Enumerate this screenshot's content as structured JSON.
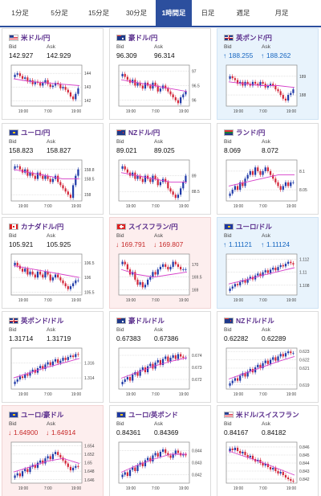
{
  "tabs": [
    {
      "label": "1分足"
    },
    {
      "label": "5分足"
    },
    {
      "label": "15分足"
    },
    {
      "label": "30分足"
    },
    {
      "label": "1時間足",
      "active": true
    },
    {
      "label": "日足"
    },
    {
      "label": "週足"
    },
    {
      "label": "月足"
    }
  ],
  "labels": {
    "bid": "Bid",
    "ask": "Ask"
  },
  "cards": [
    {
      "pair": "米ドル/円",
      "flag": "us",
      "tone": "none",
      "bid": "142.927",
      "ask": "142.929",
      "trend": "none",
      "chart_data": {
        "type": "candlestick",
        "xticks": [
          "19:00",
          "7:00",
          "19:00"
        ],
        "yticks": [
          "144",
          "143",
          "142"
        ],
        "ylim": [
          141.6,
          144.6
        ],
        "close": [
          143.9,
          144.0,
          143.8,
          143.6,
          143.7,
          143.4,
          143.5,
          143.2,
          143.4,
          143.3,
          143.1,
          143.3,
          143.5,
          143.2,
          143.0,
          143.1,
          143.3,
          143.2,
          142.9,
          143.0,
          142.8,
          142.6,
          142.3,
          142.1,
          142.5,
          142.9
        ],
        "ma": [
          143.6,
          143.4,
          143.3,
          143.2,
          143.1
        ]
      }
    },
    {
      "pair": "豪ドル/円",
      "flag": "au",
      "tone": "none",
      "bid": "96.309",
      "ask": "96.314",
      "trend": "none",
      "chart_data": {
        "type": "candlestick",
        "xticks": [
          "19:00",
          "7:00",
          "19:00"
        ],
        "yticks": [
          "97",
          "96.5",
          "96"
        ],
        "ylim": [
          95.8,
          97.2
        ],
        "close": [
          96.9,
          96.8,
          96.7,
          96.6,
          96.7,
          96.5,
          96.6,
          96.5,
          96.4,
          96.6,
          96.5,
          96.4,
          96.6,
          96.5,
          96.3,
          96.4,
          96.5,
          96.4,
          96.3,
          96.2,
          96.1,
          96.0,
          95.9,
          96.1,
          96.2,
          96.3
        ],
        "ma": [
          96.7,
          96.6,
          96.5,
          96.4,
          96.3
        ]
      }
    },
    {
      "pair": "英ポンド/円",
      "flag": "gb",
      "tone": "up",
      "bid": "188.255",
      "ask": "188.262",
      "trend": "up",
      "chart_data": {
        "type": "candlestick",
        "xticks": [
          "19:00",
          "7:00",
          "19:00"
        ],
        "yticks": [
          "189",
          "188"
        ],
        "ylim": [
          187.4,
          189.6
        ],
        "close": [
          189.0,
          188.9,
          188.8,
          188.6,
          188.7,
          188.5,
          188.7,
          188.6,
          188.5,
          188.7,
          188.6,
          188.5,
          188.7,
          188.6,
          188.4,
          188.5,
          188.6,
          188.5,
          188.3,
          188.2,
          188.0,
          187.8,
          187.7,
          188.0,
          188.1,
          188.3
        ],
        "ma": [
          188.7,
          188.6,
          188.5,
          188.5,
          188.4
        ]
      }
    },
    {
      "pair": "ユーロ/円",
      "flag": "eu",
      "tone": "none",
      "bid": "158.823",
      "ask": "158.827",
      "trend": "none",
      "chart_data": {
        "type": "candlestick",
        "xticks": [
          "19:00",
          "7:00",
          "19:00"
        ],
        "yticks": [
          "158.8",
          "158.5",
          "158"
        ],
        "ylim": [
          157.8,
          159.1
        ],
        "close": [
          158.9,
          158.9,
          158.8,
          158.7,
          158.8,
          158.6,
          158.7,
          158.6,
          158.5,
          158.7,
          158.6,
          158.5,
          158.6,
          158.5,
          158.4,
          158.5,
          158.6,
          158.4,
          158.3,
          158.2,
          158.1,
          158.0,
          157.9,
          158.3,
          158.6,
          158.8
        ],
        "ma": [
          158.8,
          158.7,
          158.6,
          158.5,
          158.5
        ]
      }
    },
    {
      "pair": "NZドル/円",
      "flag": "nz",
      "tone": "none",
      "bid": "89.021",
      "ask": "89.025",
      "trend": "none",
      "chart_data": {
        "type": "candlestick",
        "xticks": [
          "19:00",
          "7:00",
          "19:00"
        ],
        "yticks": [
          "89",
          "88.5"
        ],
        "ylim": [
          88.2,
          89.5
        ],
        "close": [
          89.3,
          89.2,
          89.1,
          89.0,
          89.1,
          88.9,
          89.0,
          88.9,
          88.8,
          89.0,
          88.9,
          88.8,
          89.0,
          88.9,
          88.7,
          88.8,
          88.9,
          88.8,
          88.6,
          88.5,
          88.4,
          88.3,
          88.4,
          88.6,
          88.8,
          89.0
        ],
        "ma": [
          89.1,
          89.0,
          88.9,
          88.8,
          88.8
        ]
      }
    },
    {
      "pair": "ランド/円",
      "flag": "za",
      "tone": "none",
      "bid": "8.069",
      "ask": "8.072",
      "trend": "none",
      "chart_data": {
        "type": "candlestick",
        "xticks": [
          "19:00",
          "7:00",
          "19:00"
        ],
        "yticks": [
          "8.1",
          "8.05"
        ],
        "ylim": [
          8.02,
          8.13
        ],
        "close": [
          8.04,
          8.05,
          8.06,
          8.05,
          8.07,
          8.06,
          8.08,
          8.09,
          8.1,
          8.09,
          8.11,
          8.1,
          8.09,
          8.1,
          8.11,
          8.1,
          8.09,
          8.08,
          8.07,
          8.06,
          8.05,
          8.06,
          8.07,
          8.06,
          8.07,
          8.07
        ],
        "ma": [
          8.06,
          8.07,
          8.08,
          8.09,
          8.09
        ]
      }
    },
    {
      "pair": "カナダドル/円",
      "flag": "ca",
      "tone": "none",
      "bid": "105.921",
      "ask": "105.925",
      "trend": "none",
      "chart_data": {
        "type": "candlestick",
        "xticks": [
          "19:00",
          "7:00",
          "19:00"
        ],
        "yticks": [
          "106.5",
          "106",
          "105.5"
        ],
        "ylim": [
          105.4,
          106.8
        ],
        "close": [
          106.5,
          106.4,
          106.3,
          106.2,
          106.3,
          106.1,
          106.2,
          106.1,
          106.0,
          106.2,
          106.1,
          106.0,
          106.2,
          106.1,
          105.9,
          106.0,
          106.1,
          106.0,
          105.9,
          105.8,
          105.7,
          105.6,
          105.7,
          105.8,
          105.9,
          105.9
        ],
        "ma": [
          106.4,
          106.3,
          106.2,
          106.1,
          106.0
        ]
      }
    },
    {
      "pair": "スイスフラン/円",
      "flag": "ch",
      "tone": "down",
      "bid": "169.791",
      "ask": "169.807",
      "trend": "down",
      "chart_data": {
        "type": "candlestick",
        "xticks": [
          "19:00",
          "7:00",
          "19:00"
        ],
        "yticks": [
          "170",
          "169.5",
          "169"
        ],
        "ylim": [
          168.8,
          170.4
        ],
        "close": [
          170.1,
          170.0,
          169.8,
          169.6,
          169.7,
          169.4,
          169.2,
          169.3,
          169.1,
          169.2,
          169.4,
          169.5,
          169.7,
          169.6,
          169.8,
          169.9,
          170.0,
          169.9,
          169.8,
          169.9,
          170.1,
          170.0,
          169.9,
          169.8,
          169.8,
          169.8
        ],
        "ma": [
          169.8,
          169.6,
          169.5,
          169.6,
          169.7
        ]
      }
    },
    {
      "pair": "ユーロ/ドル",
      "flag": "eu",
      "tone": "up",
      "bid": "1.11121",
      "ask": "1.11124",
      "trend": "up",
      "chart_data": {
        "type": "candlestick",
        "xticks": [
          "19:00",
          "7:00",
          "19:00"
        ],
        "yticks": [
          "1.112",
          "1.11",
          "1.108"
        ],
        "ylim": [
          1.1065,
          1.1128
        ],
        "close": [
          1.1075,
          1.1078,
          1.1082,
          1.108,
          1.1085,
          1.1088,
          1.1084,
          1.109,
          1.1093,
          1.1089,
          1.1095,
          1.1098,
          1.1094,
          1.11,
          1.1103,
          1.1099,
          1.1104,
          1.1107,
          1.1103,
          1.1108,
          1.1111,
          1.1109,
          1.1113,
          1.1116,
          1.1114,
          1.1112
        ],
        "ma": [
          1.1082,
          1.1088,
          1.1095,
          1.1101,
          1.1107
        ]
      }
    },
    {
      "pair": "英ポンド/ドル",
      "flag": "gb",
      "tone": "none",
      "bid": "1.31714",
      "ask": "1.31719",
      "trend": "none",
      "chart_data": {
        "type": "candlestick",
        "xticks": [
          "19:00",
          "7:00",
          "19:00"
        ],
        "yticks": [
          "1.316",
          "1.314"
        ],
        "ylim": [
          1.3125,
          1.318
        ],
        "close": [
          1.3135,
          1.3138,
          1.3142,
          1.314,
          1.3145,
          1.3143,
          1.3148,
          1.3151,
          1.3147,
          1.3153,
          1.3156,
          1.3152,
          1.3158,
          1.3161,
          1.3157,
          1.3162,
          1.3165,
          1.316,
          1.3163,
          1.3167,
          1.3164,
          1.3168,
          1.317,
          1.3168,
          1.3172,
          1.3171
        ],
        "ma": [
          1.314,
          1.3147,
          1.3154,
          1.316,
          1.3166
        ]
      }
    },
    {
      "pair": "豪ドル/ドル",
      "flag": "au",
      "tone": "none",
      "bid": "0.67383",
      "ask": "0.67386",
      "trend": "none",
      "chart_data": {
        "type": "candlestick",
        "xticks": [
          "19:00",
          "7:00",
          "19:00"
        ],
        "yticks": [
          "0.674",
          "0.673",
          "0.672"
        ],
        "ylim": [
          0.6712,
          0.6746
        ],
        "close": [
          0.6718,
          0.672,
          0.6722,
          0.6719,
          0.6724,
          0.6726,
          0.6723,
          0.6728,
          0.673,
          0.6726,
          0.6731,
          0.6733,
          0.6729,
          0.6734,
          0.6736,
          0.6732,
          0.6737,
          0.6739,
          0.6735,
          0.6738,
          0.674,
          0.6737,
          0.6741,
          0.6739,
          0.6738,
          0.6738
        ],
        "ma": [
          0.6721,
          0.6726,
          0.6731,
          0.6735,
          0.6738
        ]
      }
    },
    {
      "pair": "NZドル/ドル",
      "flag": "nz",
      "tone": "none",
      "bid": "0.62282",
      "ask": "0.62289",
      "trend": "none",
      "chart_data": {
        "type": "candlestick",
        "xticks": [
          "19:00",
          "7:00",
          "19:00"
        ],
        "yticks": [
          "0.623",
          "0.622",
          "0.621",
          "0.619"
        ],
        "ylim": [
          0.6185,
          0.6234
        ],
        "close": [
          0.6192,
          0.6195,
          0.6198,
          0.6195,
          0.6201,
          0.6204,
          0.62,
          0.6206,
          0.6209,
          0.6205,
          0.6211,
          0.6214,
          0.621,
          0.6216,
          0.6219,
          0.6215,
          0.622,
          0.6223,
          0.6219,
          0.6224,
          0.6227,
          0.6224,
          0.6228,
          0.623,
          0.6228,
          0.6228
        ],
        "ma": [
          0.6197,
          0.6204,
          0.6211,
          0.6218,
          0.6224
        ]
      }
    },
    {
      "pair": "ユーロ/豪ドル",
      "flag": "eu",
      "tone": "down",
      "bid": "1.64900",
      "ask": "1.64914",
      "trend": "down",
      "chart_data": {
        "type": "candlestick",
        "xticks": [
          "19:00",
          "7:00",
          "19:00"
        ],
        "yticks": [
          "1.654",
          "1.652",
          "1.65",
          "1.648",
          "1.646"
        ],
        "ylim": [
          1.6452,
          1.6548
        ],
        "close": [
          1.647,
          1.6475,
          1.6468,
          1.648,
          1.6485,
          1.6478,
          1.649,
          1.6495,
          1.6488,
          1.65,
          1.6505,
          1.6498,
          1.651,
          1.6515,
          1.6508,
          1.652,
          1.6525,
          1.6518,
          1.6512,
          1.6505,
          1.6498,
          1.649,
          1.6482,
          1.6488,
          1.6492,
          1.649
        ],
        "ma": [
          1.6478,
          1.649,
          1.6503,
          1.651,
          1.6498
        ]
      }
    },
    {
      "pair": "ユーロ/英ポンド",
      "flag": "eu",
      "tone": "none",
      "bid": "0.84361",
      "ask": "0.84369",
      "trend": "none",
      "chart_data": {
        "type": "candlestick",
        "xticks": [
          "19:00",
          "7:00",
          "19:00"
        ],
        "yticks": [
          "0.844",
          "0.843",
          "0.842"
        ],
        "ylim": [
          0.8413,
          0.8447
        ],
        "close": [
          0.842,
          0.8422,
          0.8419,
          0.8424,
          0.8426,
          0.8423,
          0.8428,
          0.843,
          0.8427,
          0.8432,
          0.8434,
          0.8431,
          0.8436,
          0.8438,
          0.8435,
          0.8439,
          0.8441,
          0.8438,
          0.8436,
          0.8434,
          0.8437,
          0.844,
          0.8438,
          0.8436,
          0.8437,
          0.8436
        ],
        "ma": [
          0.8422,
          0.8428,
          0.8433,
          0.8437,
          0.8437
        ]
      }
    },
    {
      "pair": "米ドル/スイスフラン",
      "flag": "us",
      "tone": "none",
      "bid": "0.84167",
      "ask": "0.84182",
      "trend": "none",
      "chart_data": {
        "type": "candlestick",
        "xticks": [
          "19:00",
          "7:00",
          "19:00"
        ],
        "yticks": [
          "0.846",
          "0.845",
          "0.844",
          "0.843",
          "0.842"
        ],
        "ylim": [
          0.8415,
          0.8466
        ],
        "close": [
          0.8458,
          0.8456,
          0.8459,
          0.8455,
          0.8452,
          0.8454,
          0.845,
          0.8447,
          0.8449,
          0.8445,
          0.8442,
          0.8444,
          0.844,
          0.8437,
          0.8439,
          0.8435,
          0.8432,
          0.8434,
          0.843,
          0.8427,
          0.8429,
          0.8425,
          0.8422,
          0.842,
          0.8418,
          0.8417
        ],
        "ma": [
          0.8455,
          0.8448,
          0.8441,
          0.8433,
          0.8425
        ]
      }
    }
  ]
}
